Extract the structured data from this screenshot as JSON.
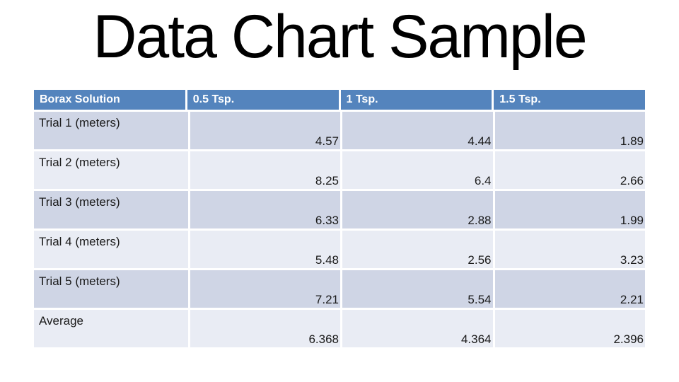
{
  "slide": {
    "title": "Data Chart Sample"
  },
  "theme": {
    "colors": {
      "slide-bg": "#ffffff",
      "title-color": "#000000",
      "header-bg": "#5484bd",
      "header-text": "#ffffff",
      "band-dark": "#cfd5e5",
      "band-light": "#e9ecf4",
      "body-text": "#1a1a1a",
      "gap-color": "#ffffff"
    }
  },
  "table": {
    "columns": [
      "Borax Solution",
      "0.5 Tsp.",
      "1 Tsp.",
      "1.5 Tsp."
    ],
    "rows": [
      {
        "label": "Trial 1 (meters)",
        "values": [
          "4.57",
          "4.44",
          "1.89"
        ]
      },
      {
        "label": "Trial 2 (meters)",
        "values": [
          "8.25",
          "6.4",
          "2.66"
        ]
      },
      {
        "label": "Trial 3 (meters)",
        "values": [
          "6.33",
          "2.88",
          "1.99"
        ]
      },
      {
        "label": "Trial 4 (meters)",
        "values": [
          "5.48",
          "2.56",
          "3.23"
        ]
      },
      {
        "label": "Trial 5 (meters)",
        "values": [
          "7.21",
          "5.54",
          "2.21"
        ]
      },
      {
        "label": "Average",
        "values": [
          "6.368",
          "4.364",
          "2.396"
        ]
      }
    ]
  },
  "chart_data": {
    "type": "table",
    "title": "Data Chart Sample",
    "columns": [
      "Borax Solution",
      "0.5 Tsp.",
      "1 Tsp.",
      "1.5 Tsp."
    ],
    "rows": [
      [
        "Trial 1 (meters)",
        4.57,
        4.44,
        1.89
      ],
      [
        "Trial 2 (meters)",
        8.25,
        6.4,
        2.66
      ],
      [
        "Trial 3 (meters)",
        6.33,
        2.88,
        1.99
      ],
      [
        "Trial 4 (meters)",
        5.48,
        2.56,
        3.23
      ],
      [
        "Trial 5 (meters)",
        7.21,
        5.54,
        2.21
      ],
      [
        "Average",
        6.368,
        4.364,
        2.396
      ]
    ],
    "layout": {
      "header_style": "blue-banner-white-bold-text",
      "row_banding": [
        "dark",
        "light",
        "dark",
        "light",
        "dark",
        "light"
      ],
      "value_alignment": "bottom-right",
      "label_alignment": "top-left"
    }
  }
}
